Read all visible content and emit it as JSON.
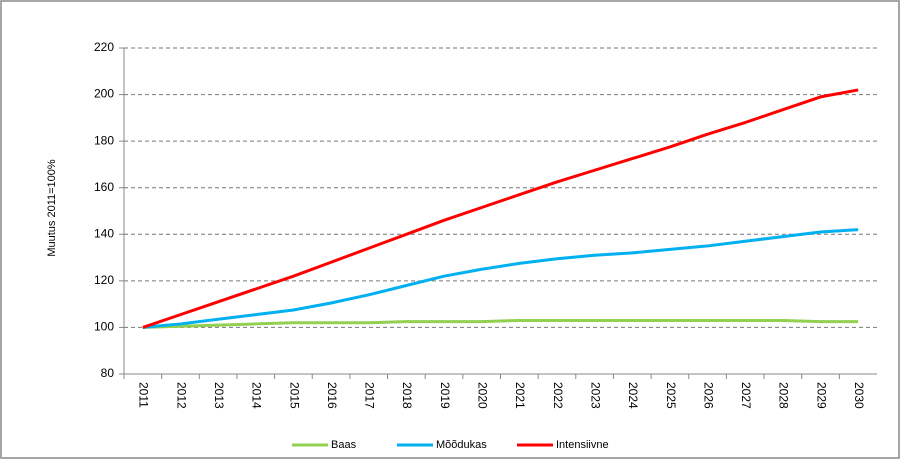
{
  "chart_data": {
    "type": "line",
    "y_label": "Muutus 2011=100%",
    "categories": [
      "2011",
      "2012",
      "2013",
      "2014",
      "2015",
      "2016",
      "2017",
      "2018",
      "2019",
      "2020",
      "2021",
      "2022",
      "2023",
      "2024",
      "2025",
      "2026",
      "2027",
      "2028",
      "2029",
      "2030"
    ],
    "series": [
      {
        "name": "Baas",
        "color": "#92d050",
        "values": [
          100,
          100.5,
          101,
          101.5,
          102,
          102,
          102,
          102.5,
          102.5,
          102.5,
          103,
          103,
          103,
          103,
          103,
          103,
          103,
          103,
          102.5,
          102.5
        ]
      },
      {
        "name": "Mõõdukas",
        "color": "#00b0f0",
        "values": [
          100,
          101.5,
          103.5,
          105.5,
          107.5,
          110.5,
          114,
          118,
          122,
          125,
          127.5,
          129.5,
          131,
          132,
          133.5,
          135,
          137,
          139,
          141,
          142
        ]
      },
      {
        "name": "Intensiivne",
        "color": "#ff0000",
        "values": [
          100,
          105.5,
          111,
          116.5,
          122,
          128,
          134,
          140,
          146,
          151.5,
          157,
          162.5,
          167.5,
          172.5,
          177.5,
          183,
          188,
          193.5,
          199,
          202
        ]
      }
    ],
    "ylim": [
      80,
      220
    ],
    "yticks": [
      80,
      100,
      120,
      140,
      160,
      180,
      200,
      220
    ],
    "grid": true,
    "legend": "bottom"
  }
}
